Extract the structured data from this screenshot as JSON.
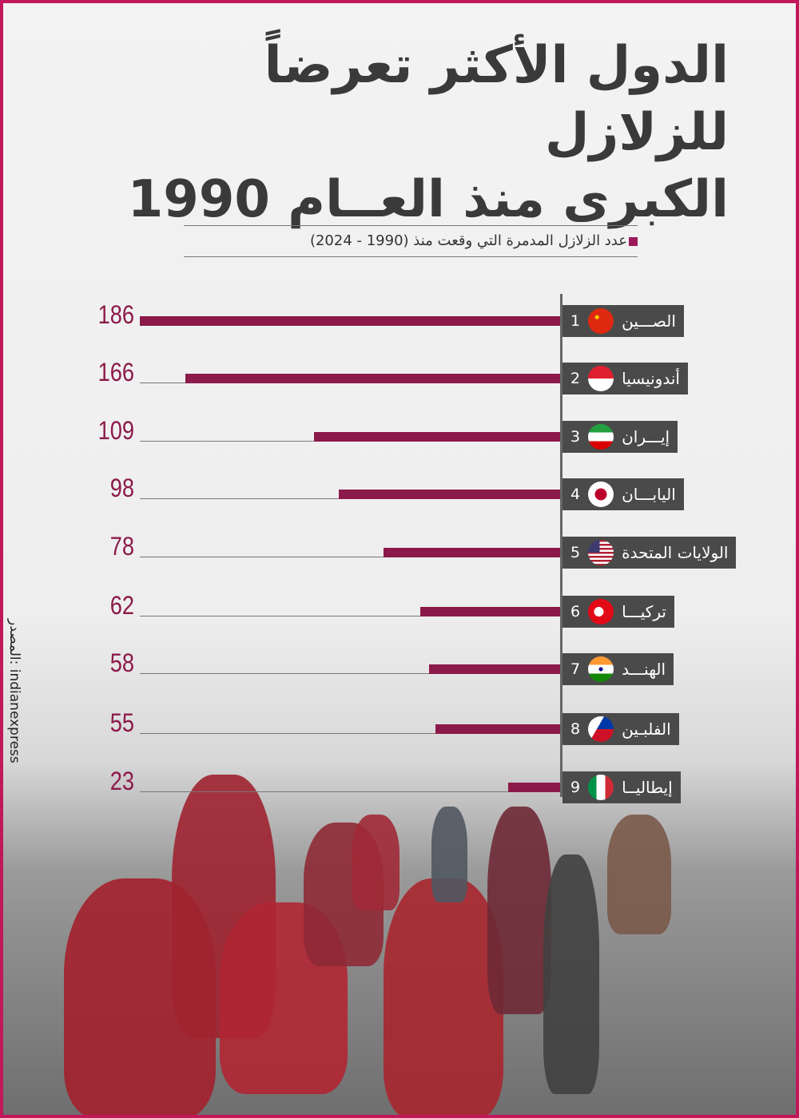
{
  "title_line1": "الدول الأكثر تعرضاً للزلازل",
  "title_line2": "الكبرى منذ العــام 1990",
  "source": "المصدر: indianexpress",
  "colors": {
    "bar": "#8b1a4a",
    "label_bg": "#4a4a4a",
    "border": "#c2185b"
  },
  "chart_data": {
    "type": "bar",
    "orientation": "horizontal",
    "title": "الدول الأكثر تعرضاً للزلازل الكبرى منذ العــام 1990",
    "legend": "عدد الزلازل المدمرة التي وقعت منذ (1990 - 2024)",
    "xlim": [
      0,
      186
    ],
    "categories": [
      {
        "rank": "1",
        "name": "الصـــين",
        "flag": "china"
      },
      {
        "rank": "2",
        "name": "أندونيسيا",
        "flag": "indonesia"
      },
      {
        "rank": "3",
        "name": "إيـــران",
        "flag": "iran"
      },
      {
        "rank": "4",
        "name": "اليابـــان",
        "flag": "japan"
      },
      {
        "rank": "5",
        "name": "الولايات المتحدة",
        "flag": "usa"
      },
      {
        "rank": "6",
        "name": "تركيـــا",
        "flag": "turkey"
      },
      {
        "rank": "7",
        "name": "الهنـــد",
        "flag": "india"
      },
      {
        "rank": "8",
        "name": "الفلبـين",
        "flag": "philippines"
      },
      {
        "rank": "9",
        "name": "إيطاليــا",
        "flag": "italy"
      }
    ],
    "values": [
      186,
      166,
      109,
      98,
      78,
      62,
      58,
      55,
      23
    ]
  }
}
